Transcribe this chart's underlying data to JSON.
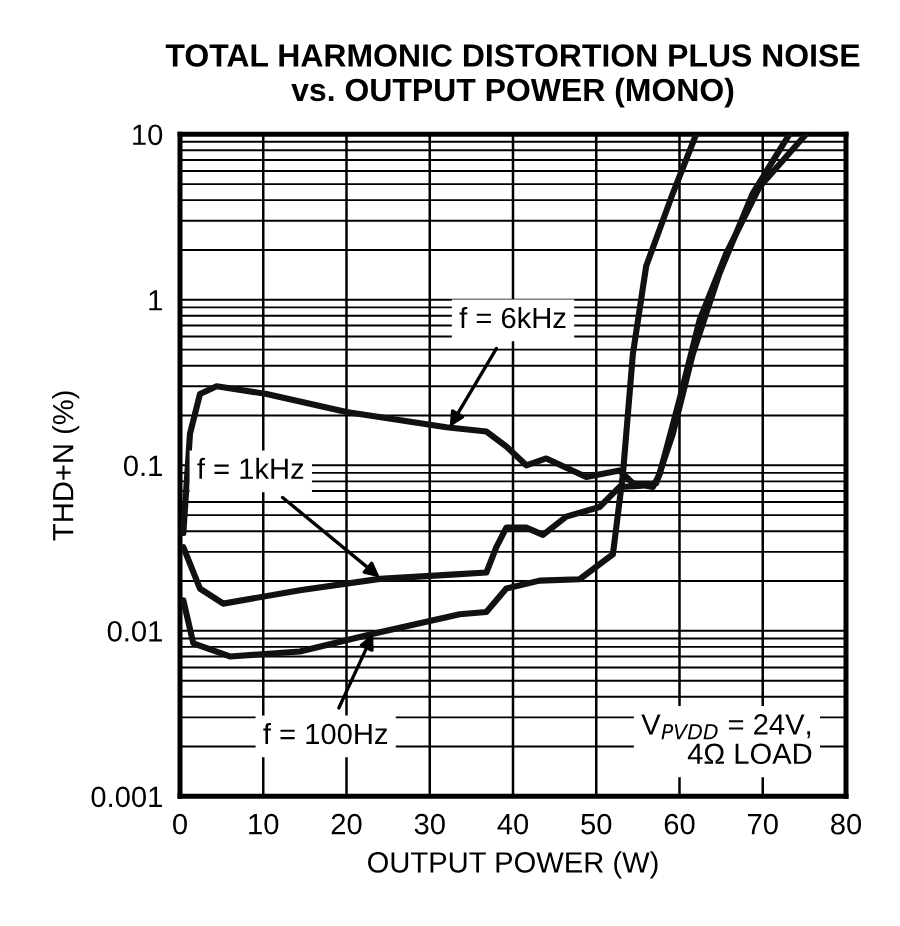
{
  "chart_data": {
    "type": "line",
    "title": "TOTAL HARMONIC DISTORTION PLUS NOISE\nvs. OUTPUT POWER (MONO)",
    "xlabel": "OUTPUT POWER (W)",
    "ylabel": "THD+N (%)",
    "log": "y",
    "xlim": [
      0,
      80
    ],
    "ylim": [
      0.001,
      10
    ],
    "xticks": [
      0,
      10,
      20,
      30,
      40,
      50,
      60,
      70,
      80
    ],
    "yticks": [
      0.001,
      0.01,
      0.1,
      1,
      10
    ],
    "grid": true,
    "legend": false,
    "marker": "none",
    "line_style": "solid",
    "series": [
      {
        "color": "#111111",
        "x": [
          0.4,
          1.2,
          2.4,
          4.4,
          10.4,
          20,
          32,
          36.8,
          39.2,
          41.6,
          44,
          48.8,
          52.8,
          54.4,
          56.8,
          57.6,
          60,
          62.4,
          65.6,
          69.6,
          75.2
        ],
        "values": [
          0.039,
          0.155,
          0.27,
          0.3,
          0.27,
          0.21,
          0.17,
          0.16,
          0.13,
          0.1,
          0.11,
          0.085,
          0.093,
          0.078,
          0.074,
          0.088,
          0.25,
          0.75,
          1.9,
          4.8,
          10
        ]
      },
      {
        "color": "#111111",
        "x": [
          0.4,
          2.4,
          5.2,
          14.4,
          24,
          33.6,
          36.8,
          38,
          39.2,
          41.6,
          43.6,
          46.4,
          50.4,
          52.8,
          55.2,
          57.2,
          59.2,
          61.6,
          64.8,
          68.8,
          73.2
        ],
        "values": [
          0.032,
          0.018,
          0.0146,
          0.0176,
          0.0206,
          0.022,
          0.0225,
          0.032,
          0.042,
          0.042,
          0.038,
          0.049,
          0.056,
          0.074,
          0.075,
          0.078,
          0.155,
          0.47,
          1.44,
          4.4,
          10
        ]
      },
      {
        "color": "#111111",
        "x": [
          0.4,
          1.6,
          6,
          14.4,
          23.2,
          33.6,
          36.8,
          39.2,
          43.2,
          48,
          52,
          53.2,
          54.4,
          56,
          59.2,
          62
        ],
        "values": [
          0.0153,
          0.0084,
          0.007,
          0.0075,
          0.0096,
          0.0126,
          0.013,
          0.018,
          0.0201,
          0.0205,
          0.029,
          0.088,
          0.47,
          1.6,
          4.4,
          10
        ]
      }
    ],
    "annotations": [
      {
        "text": "f = 6kHz",
        "x": 32.4,
        "y": 0.17
      },
      {
        "text": "f = 1kHz",
        "x": 24,
        "y": 0.021
      },
      {
        "text": "f = 100Hz",
        "x": 23.2,
        "y": 0.0096
      },
      "V$_{PVDD}$ = 24V,\n4Ω LOAD"
    ]
  }
}
